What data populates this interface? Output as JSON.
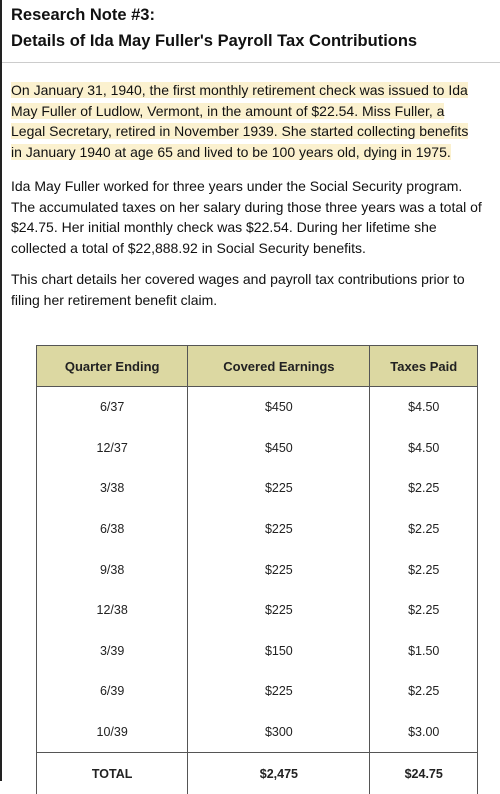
{
  "header": {
    "line1": "Research Note #3:",
    "line2": "Details of Ida May Fuller's Payroll Tax Contributions"
  },
  "intro_lines": [
    "On January 31, 1940, the first monthly retirement check was issued to Ida",
    "May Fuller of Ludlow, Vermont, in the amount of $22.54. Miss Fuller, a",
    "Legal Secretary, retired in November 1939. She started collecting benefits",
    "in January 1940 at age 65 and lived to be 100 years old, dying in 1975."
  ],
  "para1_lines": [
    "Ida May Fuller worked for three years under the Social Security program.",
    "The accumulated taxes on her salary during those three years was a total of",
    "$24.75. Her initial monthly check was $22.54. During her lifetime she",
    "collected a total of $22,888.92 in Social Security benefits."
  ],
  "para2_lines": [
    "This chart details her covered wages and payroll tax contributions prior to",
    "filing her retirement benefit claim."
  ],
  "table": {
    "headers": [
      "Quarter Ending",
      "Covered Earnings",
      "Taxes Paid"
    ],
    "rows": [
      [
        "6/37",
        "$450",
        "$4.50"
      ],
      [
        "12/37",
        "$450",
        "$4.50"
      ],
      [
        "3/38",
        "$225",
        "$2.25"
      ],
      [
        "6/38",
        "$225",
        "$2.25"
      ],
      [
        "9/38",
        "$225",
        "$2.25"
      ],
      [
        "12/38",
        "$225",
        "$2.25"
      ],
      [
        "3/39",
        "$150",
        "$1.50"
      ],
      [
        "6/39",
        "$225",
        "$2.25"
      ],
      [
        "10/39",
        "$300",
        "$3.00"
      ]
    ],
    "total": [
      "TOTAL",
      "$2,475",
      "$24.75"
    ]
  }
}
